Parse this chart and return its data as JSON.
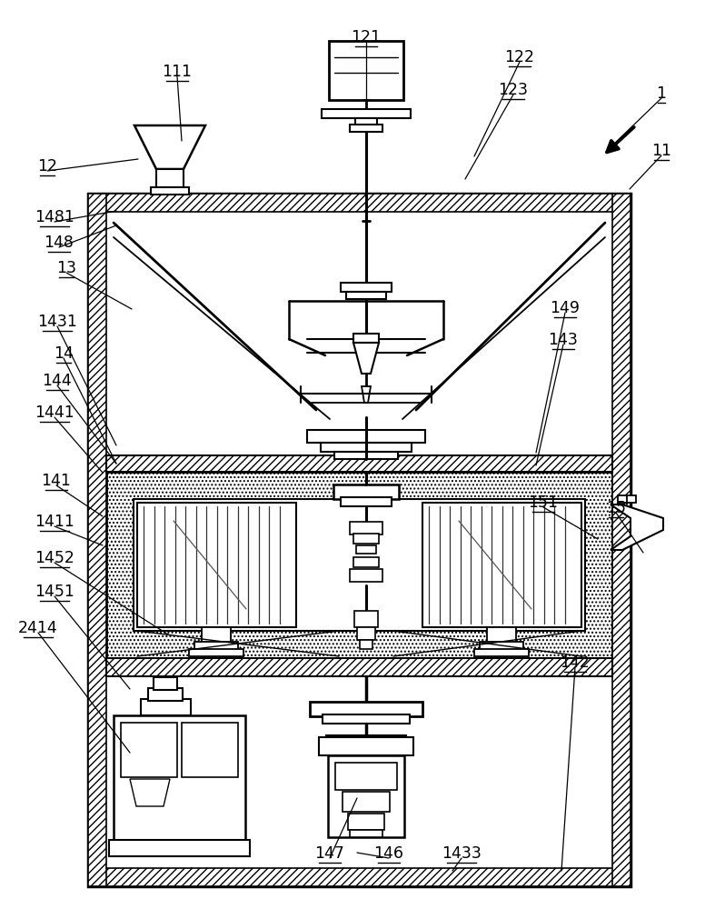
{
  "bg": "#ffffff",
  "figsize": [
    7.87,
    10.0
  ],
  "dpi": 100,
  "labels": [
    [
      "1",
      728,
      112,
      672,
      162
    ],
    [
      "11",
      728,
      175,
      693,
      208
    ],
    [
      "12",
      52,
      192,
      152,
      175
    ],
    [
      "111",
      195,
      88,
      200,
      155
    ],
    [
      "121",
      403,
      50,
      403,
      115
    ],
    [
      "122",
      572,
      72,
      522,
      172
    ],
    [
      "123",
      565,
      108,
      512,
      197
    ],
    [
      "1481",
      60,
      248,
      128,
      232
    ],
    [
      "148",
      65,
      276,
      128,
      248
    ],
    [
      "13",
      73,
      304,
      145,
      340
    ],
    [
      "1431",
      63,
      363,
      128,
      490
    ],
    [
      "14",
      70,
      398,
      128,
      510
    ],
    [
      "144",
      63,
      428,
      128,
      510
    ],
    [
      "1441",
      60,
      463,
      113,
      520
    ],
    [
      "149",
      622,
      348,
      590,
      498
    ],
    [
      "143",
      620,
      383,
      590,
      512
    ],
    [
      "141",
      62,
      538,
      113,
      568
    ],
    [
      "1411",
      60,
      583,
      113,
      600
    ],
    [
      "1452",
      60,
      623,
      185,
      698
    ],
    [
      "1451",
      60,
      660,
      143,
      758
    ],
    [
      "2414",
      42,
      700,
      143,
      828
    ],
    [
      "151",
      598,
      562,
      658,
      593
    ],
    [
      "15",
      678,
      568,
      708,
      608
    ],
    [
      "142",
      633,
      738,
      618,
      958
    ],
    [
      "147",
      363,
      948,
      393,
      878
    ],
    [
      "146",
      428,
      948,
      393,
      938
    ],
    [
      "1433",
      508,
      948,
      498,
      958
    ]
  ]
}
